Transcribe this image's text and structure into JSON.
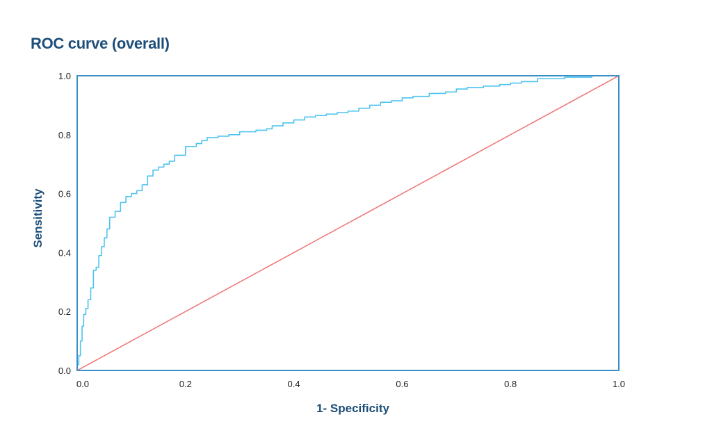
{
  "chart_data": {
    "type": "line",
    "title": "ROC curve (overall)",
    "xlabel": "1- Specificity",
    "ylabel": "Sensitivity",
    "xlim": [
      0,
      1
    ],
    "ylim": [
      0,
      1
    ],
    "x_ticks": [
      "0.0",
      "0.2",
      "0.4",
      "0.6",
      "0.8",
      "1.0"
    ],
    "y_ticks": [
      "0.0",
      "0.2",
      "0.4",
      "0.6",
      "0.8",
      "1.0"
    ],
    "grid": false,
    "legend": "none",
    "colors": {
      "roc": "#4dc3f0",
      "reference": "#f07a7a",
      "frame": "#3a8fc4",
      "text": "#1d4e79"
    },
    "series": [
      {
        "name": "",
        "x": [
          0.0,
          0.003,
          0.006,
          0.009,
          0.012,
          0.016,
          0.02,
          0.025,
          0.03,
          0.035,
          0.04,
          0.045,
          0.05,
          0.055,
          0.06,
          0.07,
          0.08,
          0.09,
          0.1,
          0.11,
          0.12,
          0.13,
          0.14,
          0.15,
          0.16,
          0.17,
          0.18,
          0.2,
          0.22,
          0.23,
          0.24,
          0.26,
          0.28,
          0.3,
          0.33,
          0.35,
          0.36,
          0.38,
          0.4,
          0.42,
          0.44,
          0.46,
          0.48,
          0.5,
          0.52,
          0.54,
          0.56,
          0.58,
          0.6,
          0.62,
          0.65,
          0.68,
          0.7,
          0.72,
          0.75,
          0.78,
          0.8,
          0.82,
          0.85,
          0.9,
          0.95,
          1.0
        ],
        "y": [
          0.0,
          0.02,
          0.05,
          0.1,
          0.15,
          0.19,
          0.21,
          0.24,
          0.28,
          0.34,
          0.35,
          0.39,
          0.42,
          0.45,
          0.48,
          0.52,
          0.54,
          0.57,
          0.59,
          0.6,
          0.61,
          0.63,
          0.66,
          0.68,
          0.69,
          0.7,
          0.71,
          0.73,
          0.76,
          0.77,
          0.78,
          0.79,
          0.795,
          0.8,
          0.81,
          0.815,
          0.82,
          0.83,
          0.84,
          0.85,
          0.86,
          0.865,
          0.87,
          0.875,
          0.88,
          0.89,
          0.9,
          0.91,
          0.915,
          0.925,
          0.93,
          0.94,
          0.945,
          0.955,
          0.96,
          0.965,
          0.97,
          0.975,
          0.98,
          0.99,
          0.995,
          1.0
        ]
      },
      {
        "name": "",
        "x": [
          0,
          1
        ],
        "y": [
          0,
          1
        ]
      }
    ]
  }
}
